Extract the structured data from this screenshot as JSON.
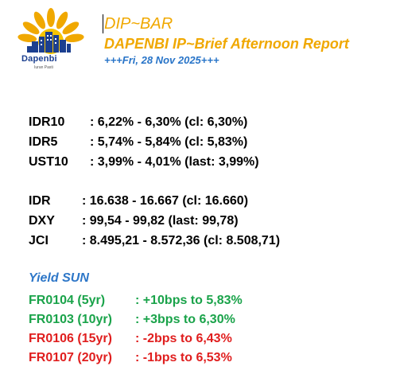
{
  "logo": {
    "brand": "Dapenbi",
    "tagline": "Iuran Pasti",
    "colors": {
      "sun": "#f0a800",
      "city": "#1b3f8f"
    }
  },
  "header": {
    "title": "DIP~BAR",
    "subtitle": "DAPENBI IP~Brief Afternoon Report",
    "date": "+++Fri, 28 Nov 2025+++"
  },
  "rates": [
    {
      "name": "IDR10",
      "value": ": 6,22% - 6,30% (cl: 6,30%)"
    },
    {
      "name": "IDR5",
      "value": ": 5,74% - 5,84% (cl: 5,83%)"
    },
    {
      "name": "UST10",
      "value": ": 3,99% - 4,01% (last: 3,99%)"
    }
  ],
  "fx": [
    {
      "name": "IDR",
      "value": ": 16.638 - 16.667 (cl: 16.660)"
    },
    {
      "name": "DXY",
      "value": ": 99,54 - 99,82 (last: 99,78)"
    },
    {
      "name": "JCI",
      "value": ": 8.495,21 - 8.572,36 (cl: 8.508,71)"
    }
  ],
  "yield_sun": {
    "title": "Yield SUN",
    "items": [
      {
        "series": "FR0104 (5yr)",
        "change": ": +10bps to 5,83%",
        "color": "#1aa34a"
      },
      {
        "series": "FR0103 (10yr)",
        "change": ": +3bps to 6,30%",
        "color": "#1aa34a"
      },
      {
        "series": "FR0106 (15yr)",
        "change": ": -2bps to 6,43%",
        "color": "#e01e1e"
      },
      {
        "series": "FR0107 (20yr)",
        "change": ": -1bps to 6,53%",
        "color": "#e01e1e"
      }
    ]
  }
}
